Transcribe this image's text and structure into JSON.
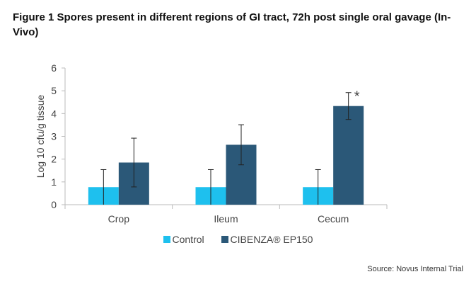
{
  "figure_title": "Figure 1 Spores present in different regions of GI tract, 72h post single oral gavage (In-Vivo)",
  "source": "Source: Novus Internal Trial",
  "chart_data": {
    "type": "bar",
    "title": "Figure 1 Spores present in different regions of GI tract, 72h post single oral gavage (In-Vivo)",
    "xlabel": "",
    "ylabel": "Log 10 cfu/g tissue",
    "ylim": [
      0,
      6
    ],
    "yticks": [
      0,
      1,
      2,
      3,
      4,
      5,
      6
    ],
    "categories": [
      "Crop",
      "Ileum",
      "Cecum"
    ],
    "series": [
      {
        "name": "Control",
        "color": "#1ec0ee",
        "values": [
          0.77,
          0.77,
          0.77
        ],
        "error": [
          0.77,
          0.77,
          0.77
        ]
      },
      {
        "name": "CIBENZA® EP150",
        "color": "#2b5878",
        "values": [
          1.85,
          2.63,
          4.33
        ],
        "error": [
          1.07,
          0.88,
          0.59
        ]
      }
    ],
    "annotations": [
      {
        "category": "Cecum",
        "series": "CIBENZA® EP150",
        "text": "*"
      }
    ],
    "legend_position": "bottom",
    "grid": false
  }
}
